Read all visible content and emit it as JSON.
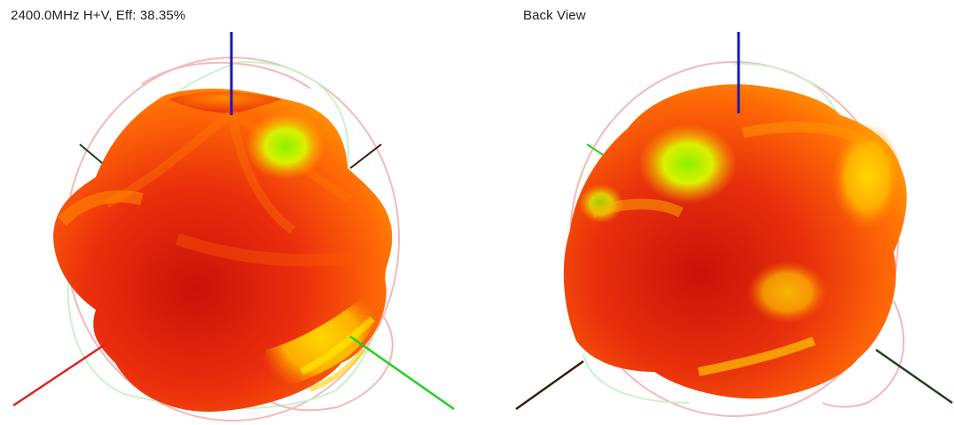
{
  "views": [
    {
      "title": "2400.0MHz H+V, Eff: 38.35%"
    },
    {
      "title": "Back View"
    }
  ],
  "colors": {
    "z_axis": "#1a1ab0",
    "x_axis": "#e02020",
    "y_axis": "#20d020",
    "dark_axis": "#3a1a10",
    "pattern_hot": "#d81a0a",
    "pattern_mid": "#ff8a00",
    "pattern_cool": "#f4f200",
    "pattern_low": "#9cf000"
  }
}
